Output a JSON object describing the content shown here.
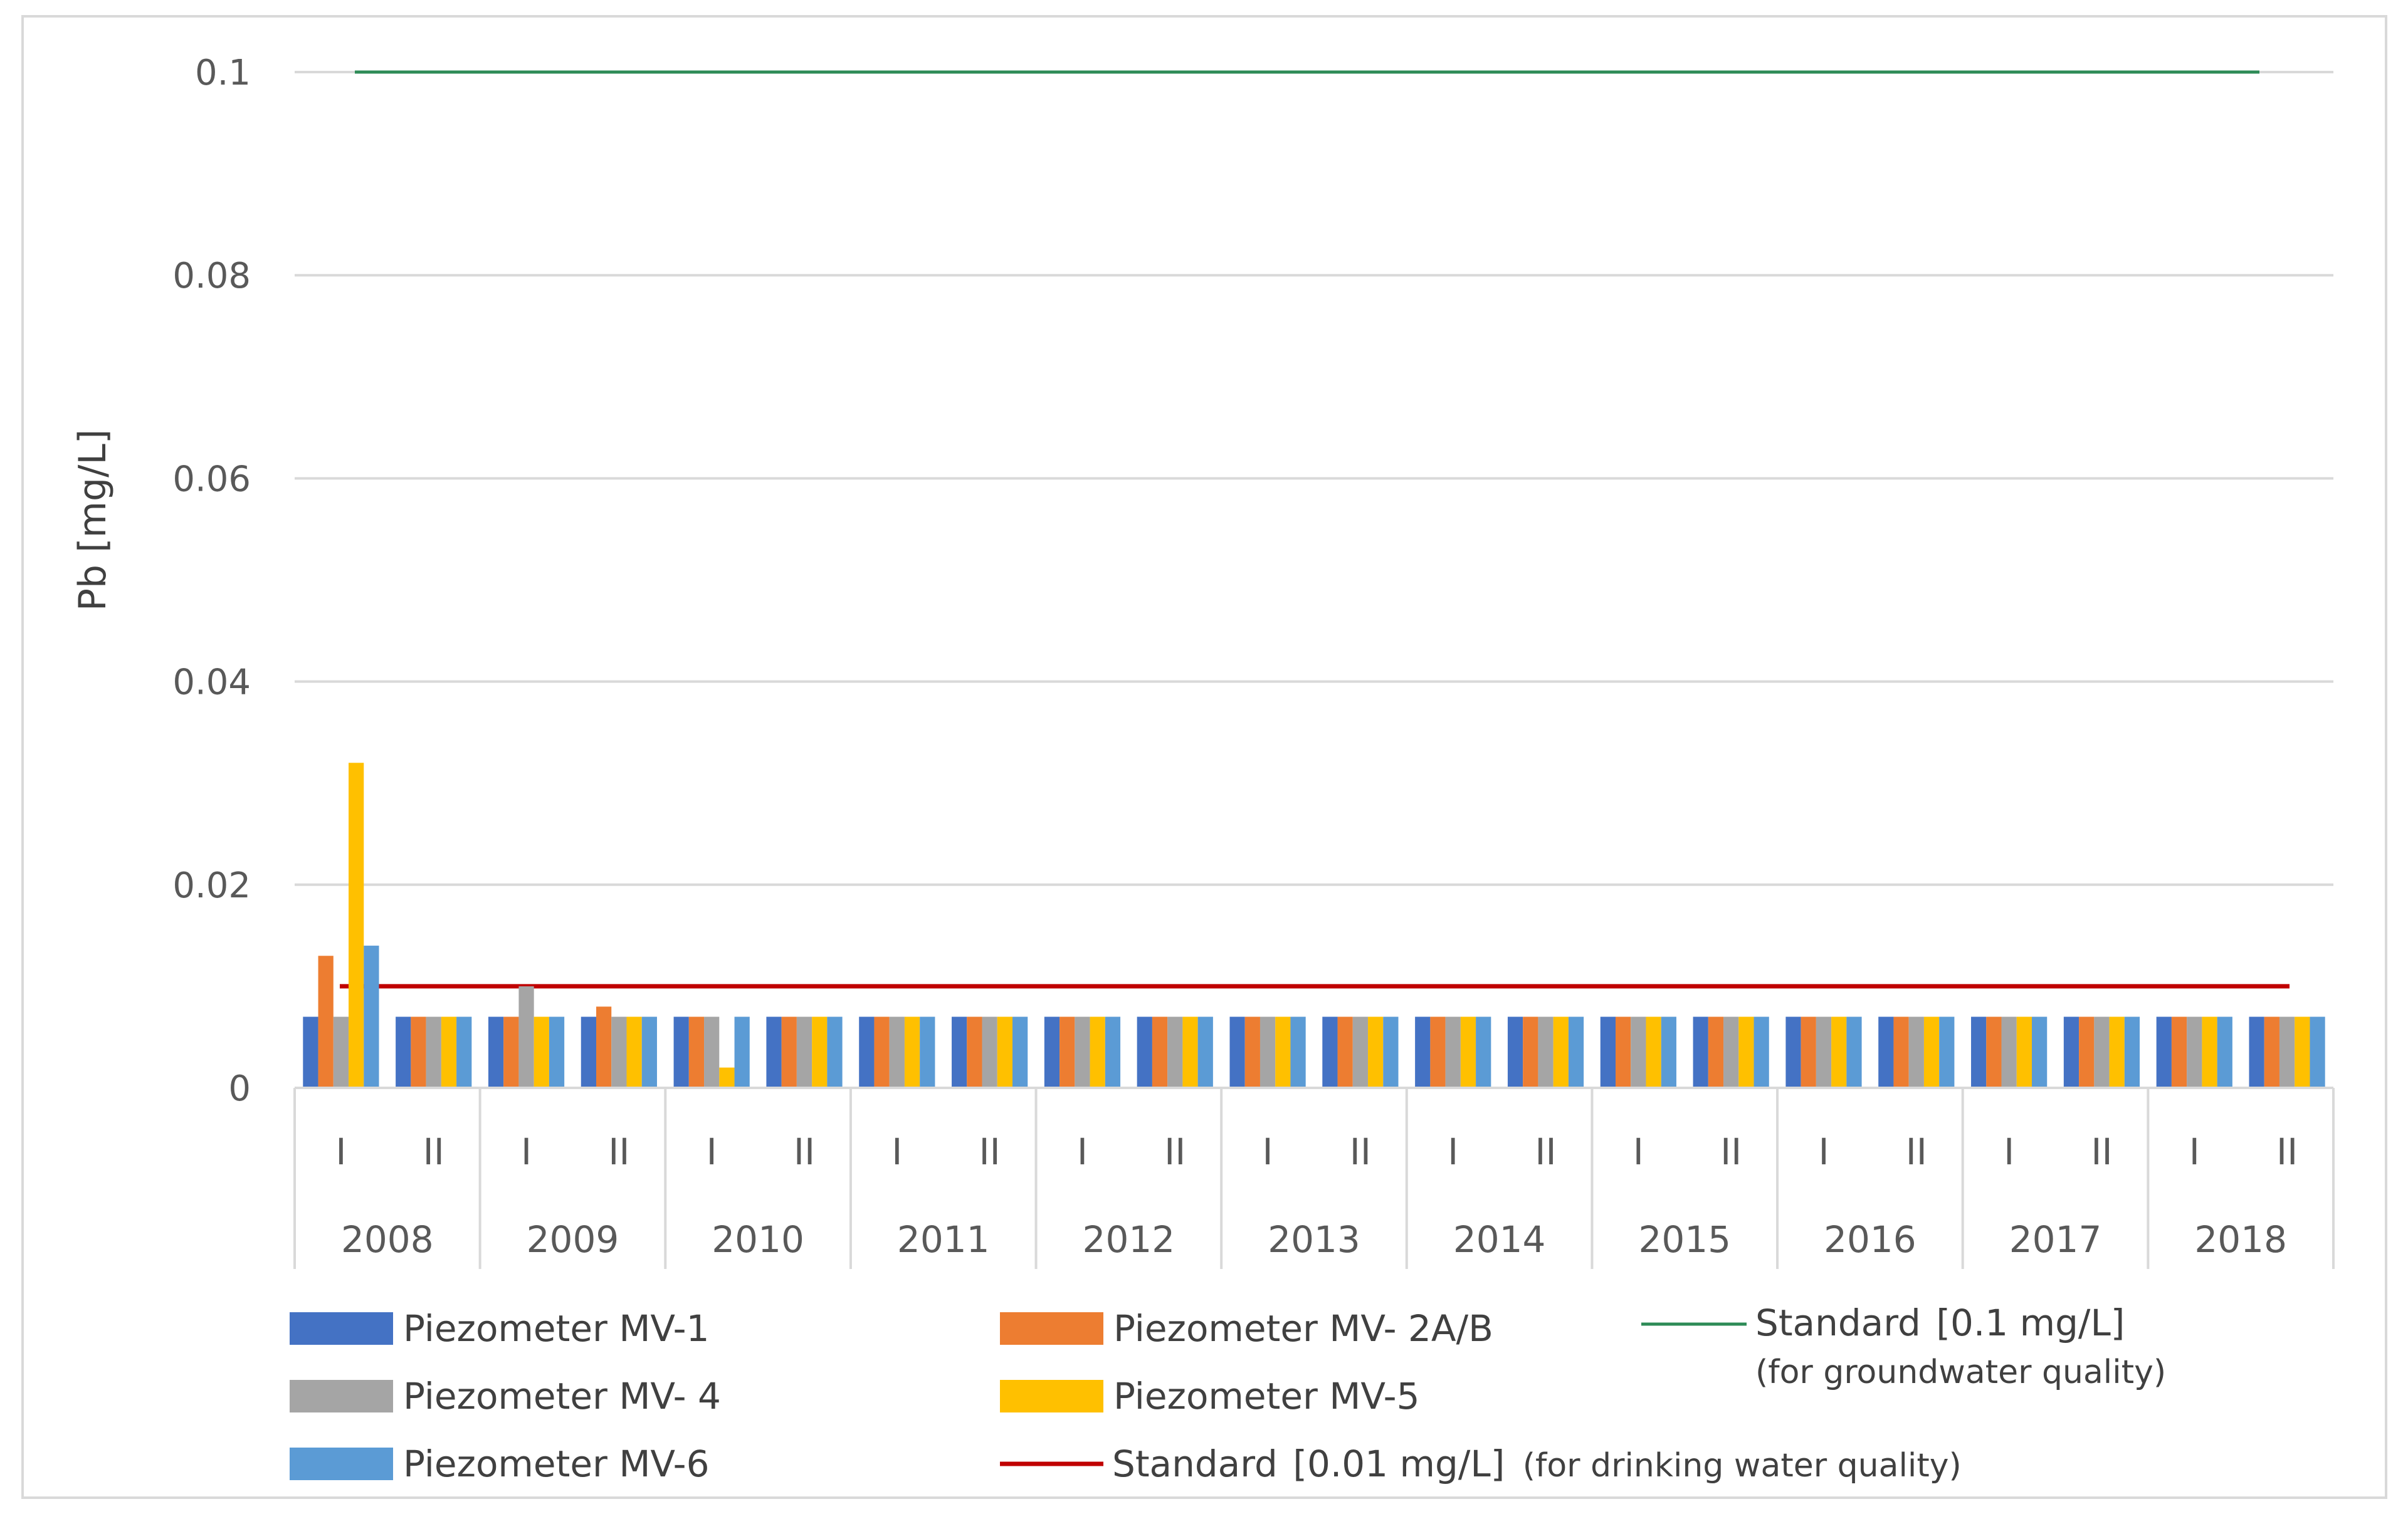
{
  "chart_data": {
    "type": "bar",
    "title": "",
    "ylabel": "Pb [mg/L]",
    "xlabel": "",
    "ylim": [
      0,
      0.1
    ],
    "yticks": [
      0,
      0.02,
      0.04,
      0.06,
      0.08,
      0.1
    ],
    "ytick_labels": [
      "0",
      "0.02",
      "0.04",
      "0.06",
      "0.08",
      "0.1"
    ],
    "grid": true,
    "years": [
      "2008",
      "2009",
      "2010",
      "2011",
      "2012",
      "2013",
      "2014",
      "2015",
      "2016",
      "2017",
      "2018"
    ],
    "periods": [
      "I",
      "II"
    ],
    "categories": [
      "2008 I",
      "2008 II",
      "2009 I",
      "2009 II",
      "2010 I",
      "2010 II",
      "2011 I",
      "2011 II",
      "2012 I",
      "2012 II",
      "2013 I",
      "2013 II",
      "2014 I",
      "2014 II",
      "2015 I",
      "2015 II",
      "2016 I",
      "2016 II",
      "2017 I",
      "2017 II",
      "2018 I",
      "2018 II"
    ],
    "series": [
      {
        "name": "Piezometer MV-1",
        "color": "#4472C4",
        "values": [
          0.007,
          0.007,
          0.007,
          0.007,
          0.007,
          0.007,
          0.007,
          0.007,
          0.007,
          0.007,
          0.007,
          0.007,
          0.007,
          0.007,
          0.007,
          0.007,
          0.007,
          0.007,
          0.007,
          0.007,
          0.007,
          0.007
        ]
      },
      {
        "name": "Piezometer MV- 2A/B",
        "color": "#ED7D31",
        "values": [
          0.013,
          0.007,
          0.007,
          0.008,
          0.007,
          0.007,
          0.007,
          0.007,
          0.007,
          0.007,
          0.007,
          0.007,
          0.007,
          0.007,
          0.007,
          0.007,
          0.007,
          0.007,
          0.007,
          0.007,
          0.007,
          0.007
        ]
      },
      {
        "name": "Piezometer MV- 4",
        "color": "#A5A5A5",
        "values": [
          0.007,
          0.007,
          0.01,
          0.007,
          0.007,
          0.007,
          0.007,
          0.007,
          0.007,
          0.007,
          0.007,
          0.007,
          0.007,
          0.007,
          0.007,
          0.007,
          0.007,
          0.007,
          0.007,
          0.007,
          0.007,
          0.007
        ]
      },
      {
        "name": "Piezometer MV-5",
        "color": "#FFC000",
        "values": [
          0.032,
          0.007,
          0.007,
          0.007,
          0.002,
          0.007,
          0.007,
          0.007,
          0.007,
          0.007,
          0.007,
          0.007,
          0.007,
          0.007,
          0.007,
          0.007,
          0.007,
          0.007,
          0.007,
          0.007,
          0.007,
          0.007
        ]
      },
      {
        "name": "Piezometer MV-6",
        "color": "#5B9BD5",
        "values": [
          0.014,
          0.007,
          0.007,
          0.007,
          0.007,
          0.007,
          0.007,
          0.007,
          0.007,
          0.007,
          0.007,
          0.007,
          0.007,
          0.007,
          0.007,
          0.007,
          0.007,
          0.007,
          0.007,
          0.007,
          0.007,
          0.007
        ]
      }
    ],
    "reference_lines": [
      {
        "name": "Standard",
        "value": 0.1,
        "label": "Standard",
        "bracket": "[0.1 mg/L]",
        "note": "(for groundwater quality)",
        "color": "#2E8B57"
      },
      {
        "name": "Standard",
        "value": 0.01,
        "label": "Standard",
        "bracket": "[0.01 mg/L]",
        "note": "(for drinking water quality)",
        "color": "#C00000"
      }
    ],
    "legend_position": "bottom"
  }
}
